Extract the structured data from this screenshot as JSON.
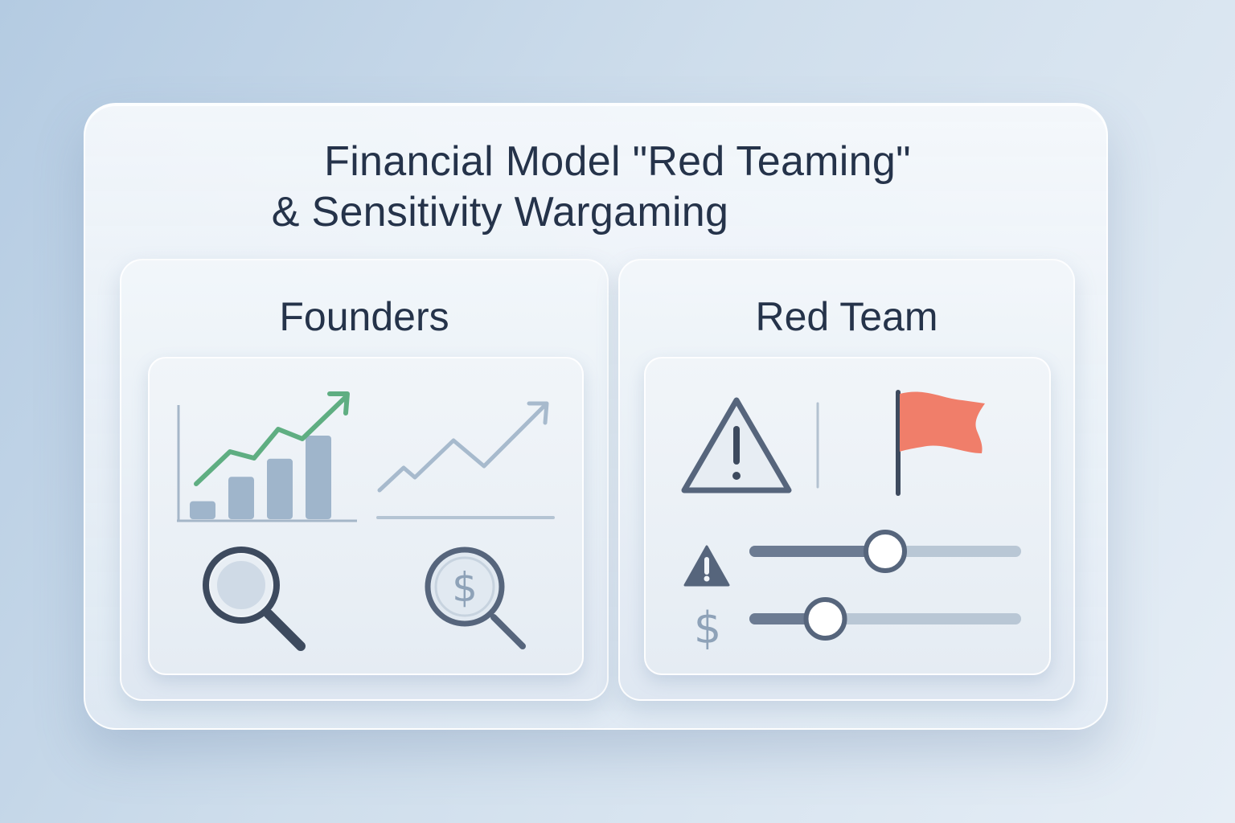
{
  "title": {
    "line1": "Financial Model \"Red Teaming\"",
    "line2": "& Sensitivity Wargaming"
  },
  "founders": {
    "heading": "Founders",
    "bar_values": [
      0.14,
      0.33,
      0.47,
      0.65
    ],
    "icons": [
      "growth-chart-icon",
      "trend-line-icon",
      "magnifier-icon",
      "dollar-search-icon"
    ]
  },
  "red_team": {
    "heading": "Red Team",
    "icons": [
      "warning-icon",
      "red-flag-icon"
    ],
    "sliders": [
      {
        "icon": "warning-icon",
        "value": 0.5
      },
      {
        "icon": "dollar-icon",
        "value": 0.27
      }
    ]
  },
  "colors": {
    "accent_green": "#5fae82",
    "flag_red": "#f07e6a",
    "ink": "#25334a",
    "slate": "#56657c",
    "bar": "#9fb5cb"
  }
}
